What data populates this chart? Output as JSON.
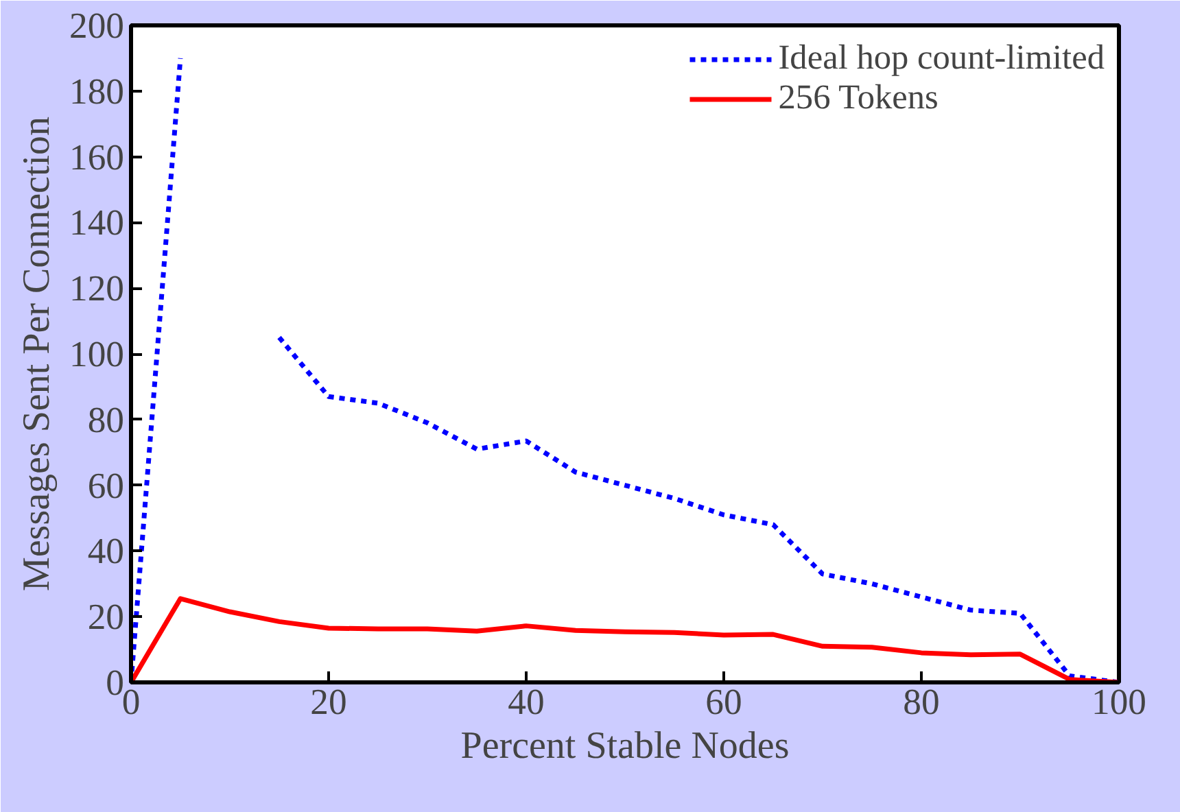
{
  "chart_data": {
    "type": "line",
    "xlabel": "Percent Stable Nodes",
    "ylabel": "Messages Sent Per Connection",
    "x": [
      0,
      5,
      10,
      15,
      20,
      25,
      30,
      35,
      40,
      45,
      50,
      55,
      60,
      65,
      70,
      75,
      80,
      85,
      90,
      95,
      100
    ],
    "series": [
      {
        "name": "Ideal hop count-limited",
        "color": "#0000ff",
        "line_style": "dashed",
        "values": [
          0,
          190,
          null,
          105,
          87,
          85,
          79,
          71,
          73.5,
          64,
          60,
          56,
          51,
          48,
          33,
          30,
          26,
          22,
          21,
          2,
          0
        ]
      },
      {
        "name": "256 Tokens",
        "color": "#ff0000",
        "line_style": "solid",
        "values": [
          0,
          25.5,
          21.5,
          18.5,
          16.5,
          16.3,
          16.3,
          15.6,
          17.2,
          15.8,
          15.4,
          15.2,
          14.4,
          14.6,
          11,
          10.7,
          9,
          8.4,
          8.6,
          0.9,
          0
        ]
      }
    ],
    "xlim": [
      0,
      100
    ],
    "ylim": [
      0,
      200
    ],
    "xticks": [
      0,
      20,
      40,
      60,
      80,
      100
    ],
    "yticks": [
      0,
      20,
      40,
      60,
      80,
      100,
      120,
      140,
      160,
      180,
      200
    ],
    "grid": false,
    "legend": "top right",
    "marker": "none"
  }
}
